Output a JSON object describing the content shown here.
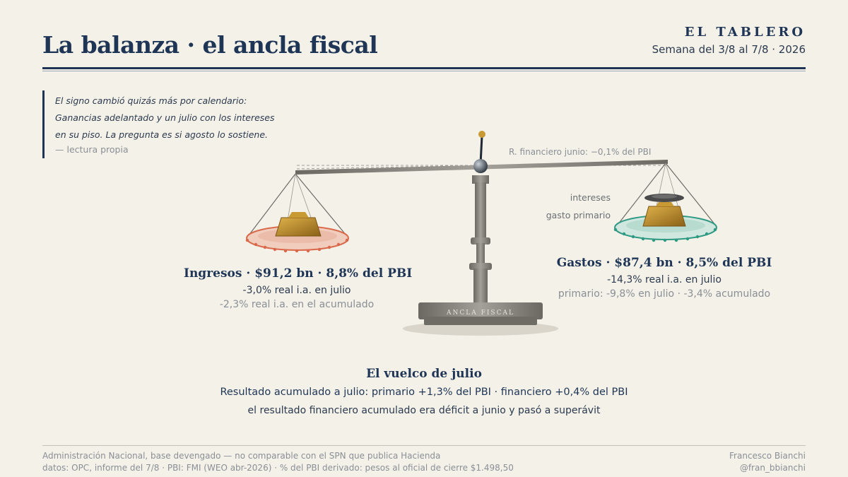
{
  "header": {
    "title": "La balanza · el ancla fiscal",
    "brand": "EL TABLERO",
    "week": "Semana del 3/8 al 7/8 · 2026"
  },
  "quote": {
    "text": "El signo cambió quizás más por calendario: Ganancias adelantado y un julio con los intereses en su piso. La pregunta es si agosto lo sostiene.",
    "source": "— lectura propia"
  },
  "scale": {
    "base_label": "ANCLA FISCAL",
    "beam_note": "R. financiero junio: −0,1% del PBI",
    "tilt_level": "balanza inclinada hacia ingresos",
    "colors": {
      "left_pan": "#d9694a",
      "right_pan": "#2f9a83",
      "weight": "#b98a2c",
      "interest_weight": "#4a4a4a",
      "metal": "#7d7a73"
    }
  },
  "left_pan": {
    "title": "Ingresos · $91,2 bn · 8,8% del PBI",
    "line": "-3,0% real i.a. en julio",
    "sub": "-2,3% real i.a. en el acumulado"
  },
  "right_pan": {
    "title": "Gastos · $87,4 bn · 8,5% del PBI",
    "line": "-14,3% real i.a. en julio",
    "sub": "primario: -9,8% en julio · -3,4% acumulado",
    "label_intereses": "intereses",
    "label_gasto": "gasto primario"
  },
  "vuelco": {
    "title": "El vuelco de julio",
    "line": "Resultado acumulado a julio: primario +1,3% del PBI · financiero +0,4% del PBI",
    "sub": "el resultado financiero acumulado era déficit a junio y pasó a superávit"
  },
  "footer": {
    "note": "Administración Nacional, base devengado — no comparable con el SPN que publica Hacienda",
    "sources": "datos: OPC, informe del 7/8 · PBI: FMI (WEO abr-2026) · % del PBI derivado: pesos al oficial de cierre $1.498,50",
    "author": "Francesco Bianchi",
    "handle": "@fran_bbianchi"
  }
}
